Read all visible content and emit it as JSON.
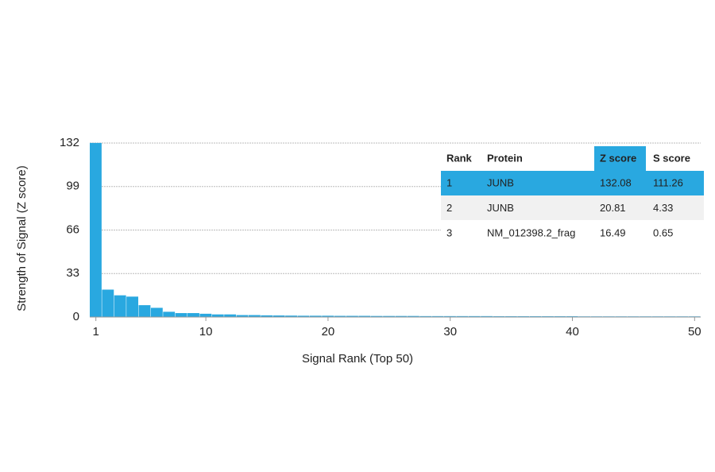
{
  "chart_data": {
    "type": "bar",
    "xlabel": "Signal Rank (Top 50)",
    "ylabel": "Strength of Signal (Z score)",
    "x": [
      1,
      2,
      3,
      4,
      5,
      6,
      7,
      8,
      9,
      10,
      11,
      12,
      13,
      14,
      15,
      16,
      17,
      18,
      19,
      20,
      21,
      22,
      23,
      24,
      25,
      26,
      27,
      28,
      29,
      30,
      31,
      32,
      33,
      34,
      35,
      36,
      37,
      38,
      39,
      40,
      41,
      42,
      43,
      44,
      45,
      46,
      47,
      48,
      49,
      50
    ],
    "values": [
      132.08,
      20.81,
      16.49,
      15.5,
      9,
      7,
      4,
      3,
      3,
      2.5,
      2,
      2,
      1.5,
      1.5,
      1.3,
      1.2,
      1.1,
      1,
      1,
      1,
      0.9,
      0.9,
      0.9,
      0.8,
      0.8,
      0.8,
      0.8,
      0.7,
      0.7,
      0.7,
      0.7,
      0.7,
      0.7,
      0.6,
      0.6,
      0.6,
      0.6,
      0.6,
      0.6,
      0.6,
      0.5,
      0.5,
      0.5,
      0.5,
      0.5,
      0.5,
      0.5,
      0.5,
      0.5,
      0.5
    ],
    "color": "#29a8e0",
    "xlim": [
      0.5,
      50.5
    ],
    "xticks": [
      1,
      10,
      20,
      30,
      40,
      50
    ],
    "ylim": [
      0,
      132
    ],
    "yticks": [
      0,
      33,
      66,
      99,
      132
    ],
    "grid": true
  },
  "table": {
    "header": [
      "Rank",
      "Protein",
      "Z score",
      "S score"
    ],
    "rows": [
      [
        1,
        "JUNB",
        132.08,
        111.26
      ],
      [
        2,
        "JUNB",
        20.81,
        4.33
      ],
      [
        3,
        "NM_012398.2_frag",
        16.49,
        0.65
      ]
    ]
  }
}
